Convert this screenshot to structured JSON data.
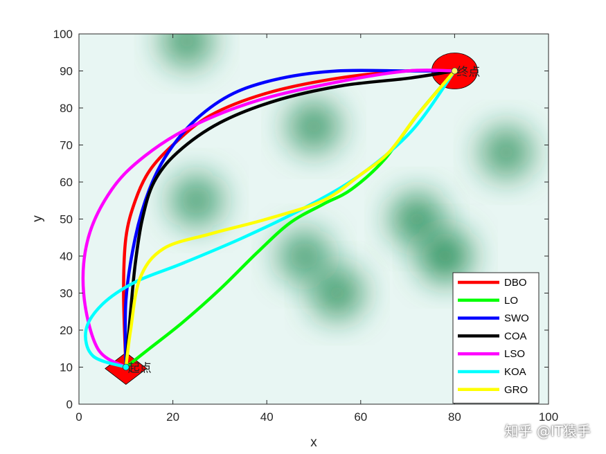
{
  "chart_data": {
    "type": "line",
    "xlabel": "x",
    "ylabel": "y",
    "xlim": [
      0,
      100
    ],
    "ylim": [
      0,
      100
    ],
    "xticks": [
      0,
      20,
      40,
      60,
      80,
      100
    ],
    "yticks": [
      0,
      10,
      20,
      30,
      40,
      50,
      60,
      70,
      80,
      90,
      100
    ],
    "grid": false,
    "legend_position": "bottom-right",
    "start": {
      "label": "起点",
      "x": 10,
      "y": 10
    },
    "goal": {
      "label": "终点",
      "x": 80,
      "y": 90
    },
    "background": "green threat heatmap",
    "threats": [
      {
        "x": 23,
        "y": 98,
        "strength": 0.6
      },
      {
        "x": 50,
        "y": 75,
        "strength": 0.65
      },
      {
        "x": 25,
        "y": 55,
        "strength": 0.55
      },
      {
        "x": 72,
        "y": 50,
        "strength": 0.8
      },
      {
        "x": 78,
        "y": 40,
        "strength": 1.0
      },
      {
        "x": 55,
        "y": 30,
        "strength": 0.7
      },
      {
        "x": 48,
        "y": 40,
        "strength": 0.55
      },
      {
        "x": 91,
        "y": 68,
        "strength": 0.6
      }
    ],
    "series": [
      {
        "name": "DBO",
        "color": "#ff0000",
        "x": [
          10,
          9.5,
          10,
          12,
          15,
          20,
          28,
          40,
          55,
          70,
          80
        ],
        "y": [
          10,
          30,
          45,
          55,
          63,
          70,
          78,
          84,
          88,
          90,
          90
        ]
      },
      {
        "name": "LO",
        "color": "#00ff00",
        "x": [
          10,
          15,
          22,
          30,
          38,
          45,
          52,
          58,
          65,
          72,
          80
        ],
        "y": [
          10,
          15,
          22,
          31,
          41,
          49,
          54,
          58,
          66,
          78,
          90
        ]
      },
      {
        "name": "SWO",
        "color": "#0000ff",
        "x": [
          10,
          10,
          12,
          15,
          19,
          25,
          33,
          43,
          55,
          70,
          80
        ],
        "y": [
          10,
          28,
          45,
          58,
          68,
          77,
          84,
          88,
          90,
          90,
          90
        ]
      },
      {
        "name": "COA",
        "color": "#000000",
        "x": [
          10,
          11,
          12,
          13.5,
          16,
          21,
          30,
          42,
          56,
          70,
          80
        ],
        "y": [
          10,
          25,
          38,
          50,
          60,
          68,
          76,
          82,
          86,
          88,
          90
        ]
      },
      {
        "name": "LSO",
        "color": "#ff00ff",
        "x": [
          10,
          4,
          1,
          2,
          7,
          14,
          24,
          38,
          55,
          70,
          80
        ],
        "y": [
          10,
          15,
          30,
          45,
          58,
          67,
          75,
          82,
          87,
          90,
          90
        ]
      },
      {
        "name": "KOA",
        "color": "#00ffff",
        "x": [
          10,
          3,
          1.5,
          5,
          12,
          22,
          35,
          48,
          60,
          71,
          80
        ],
        "y": [
          10,
          13,
          20,
          27,
          33,
          38,
          45,
          53,
          62,
          74,
          90
        ]
      },
      {
        "name": "GRO",
        "color": "#ffff00",
        "x": [
          10,
          11,
          13,
          18,
          28,
          40,
          52,
          60,
          66,
          72,
          80
        ],
        "y": [
          10,
          20,
          34,
          42,
          46,
          50,
          55,
          62,
          68,
          78,
          90
        ]
      }
    ]
  },
  "watermark": "知乎 @IT猿手"
}
